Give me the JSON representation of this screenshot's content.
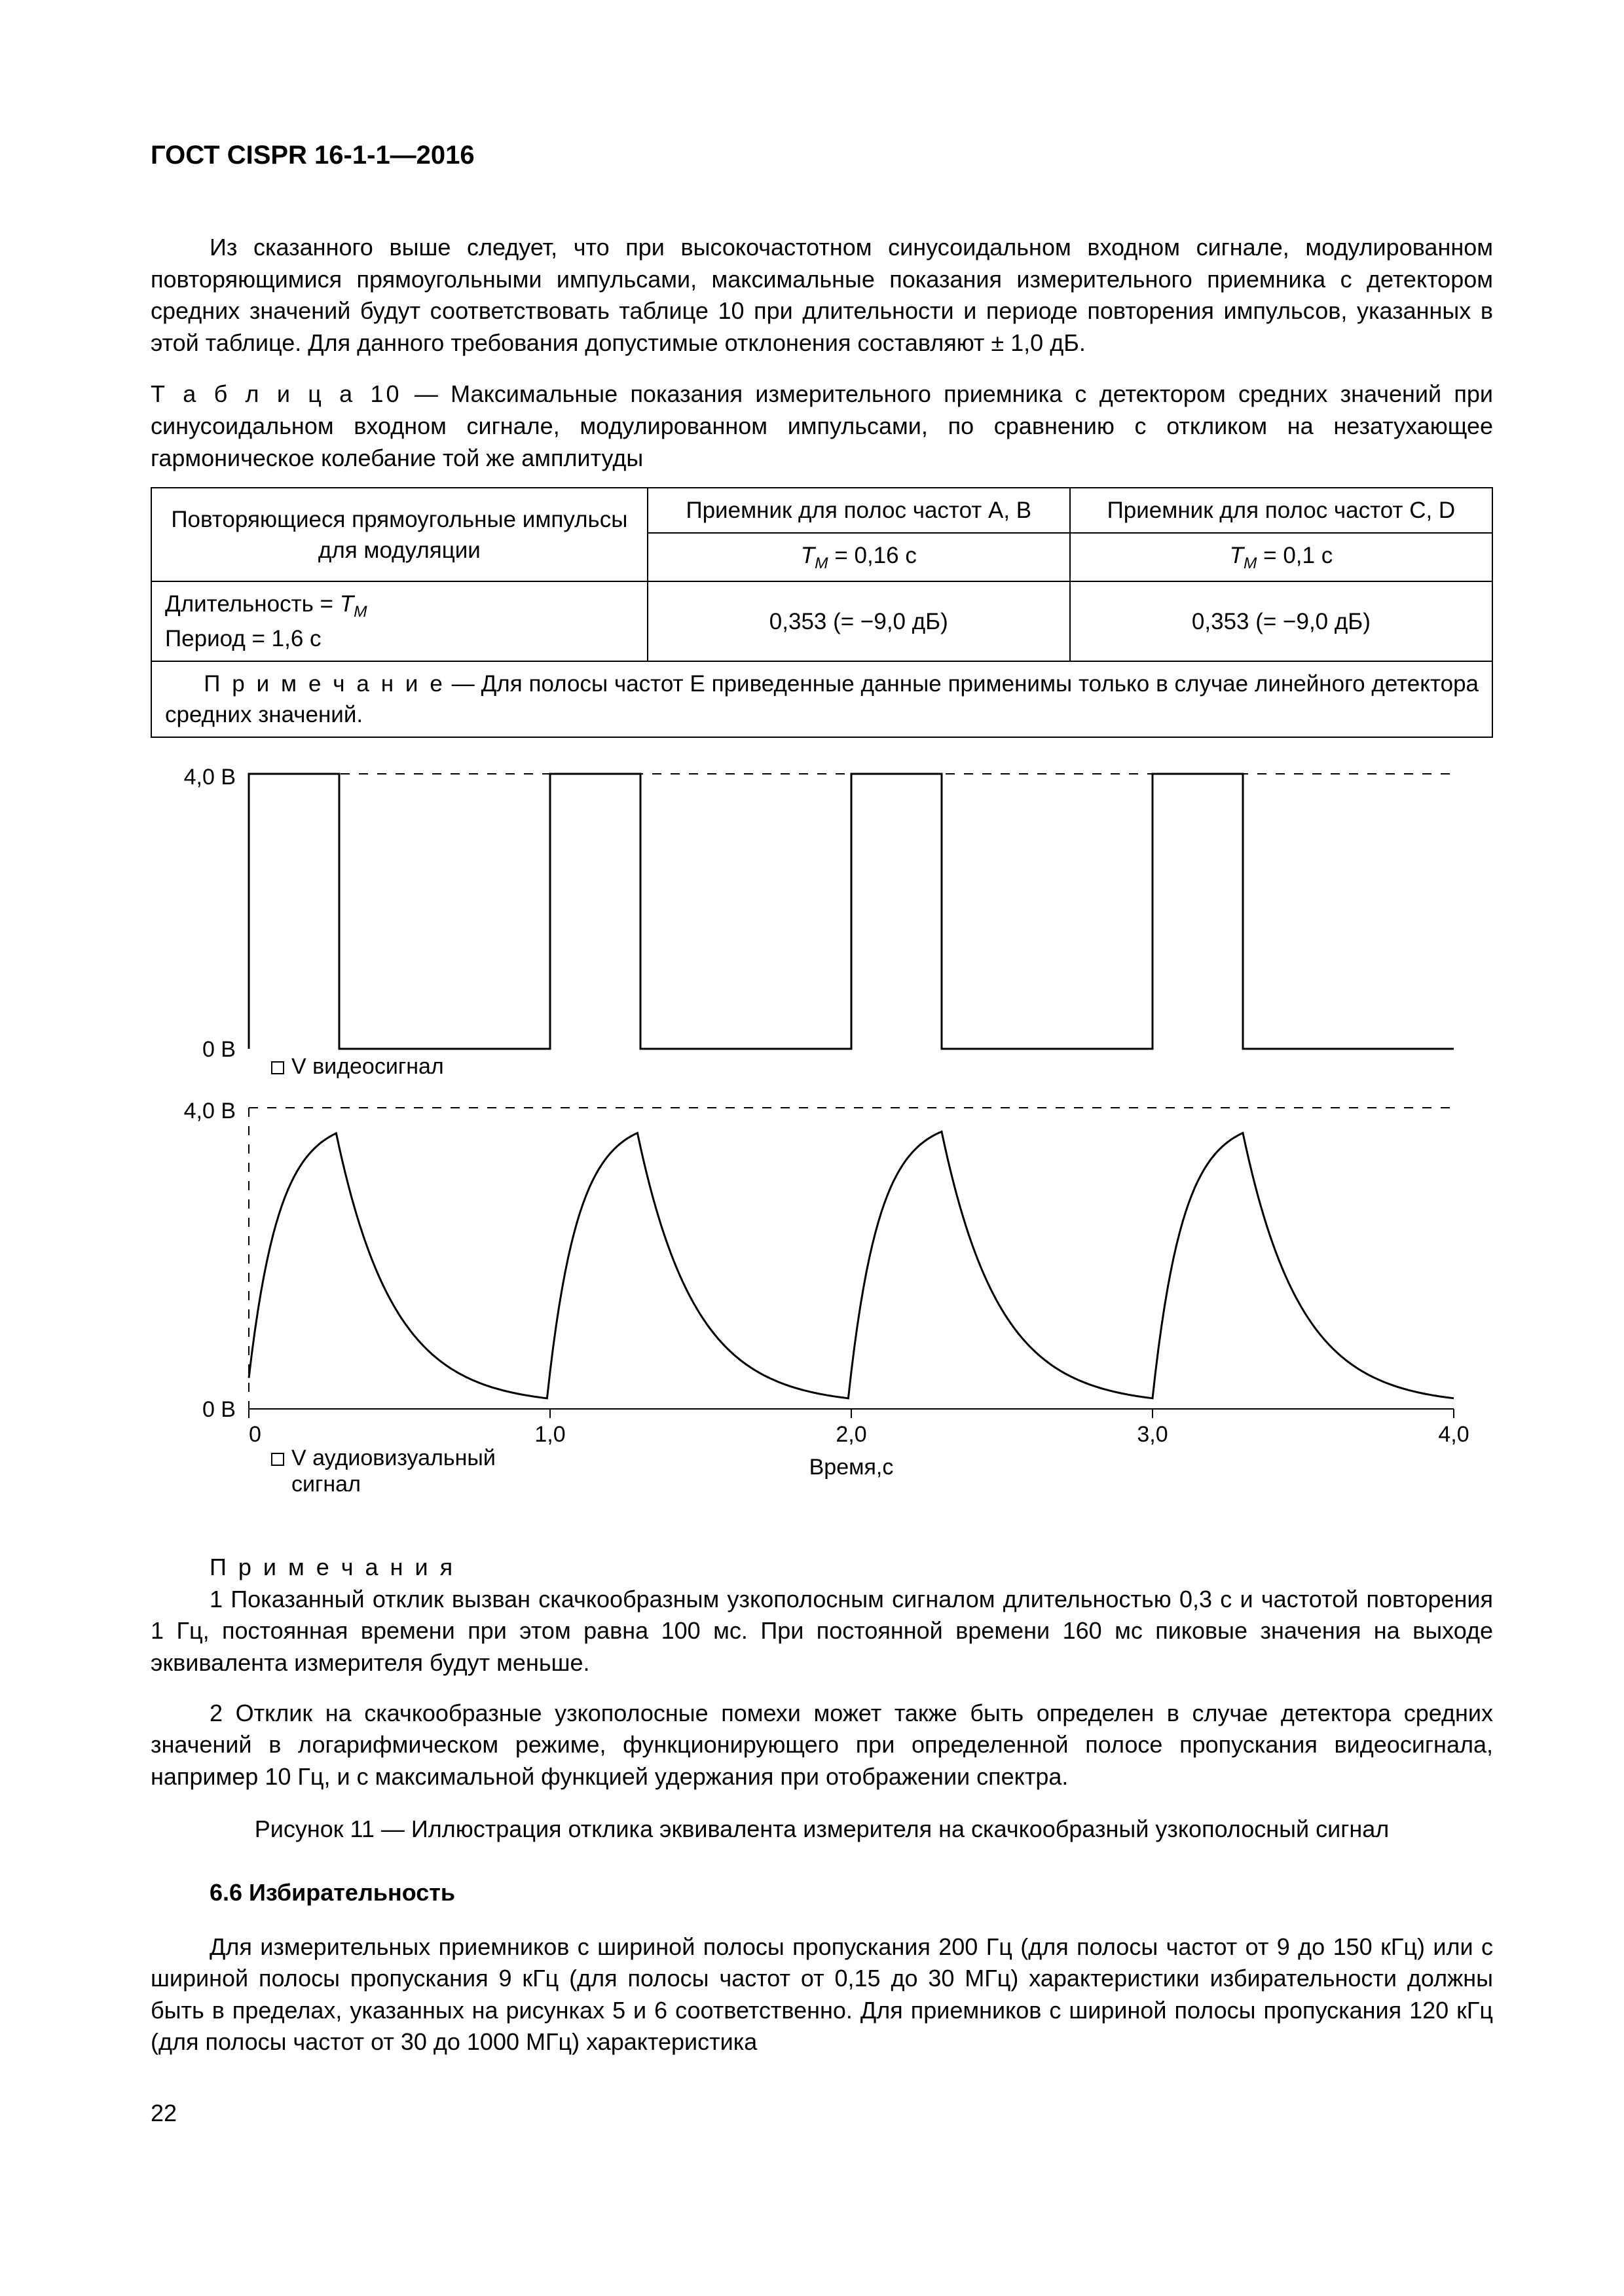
{
  "doc": {
    "header": "ГОСТ CISPR 16-1-1—2016",
    "page_number": "22"
  },
  "para1": "Из сказанного выше следует, что при высокочастотном синусоидальном входном сигнале, модулированном повторяющимися прямоугольными импульсами, максимальные показания измерительного приемника с детектором средних значений будут соответствовать таблице 10 при длительности и периоде повторения импульсов, указанных в этой таблице. Для данного требования допустимые отклонения составляют ± 1,0 дБ.",
  "table10": {
    "caption_prefix": "Т а б л и ц а   10",
    "caption_rest": " — Максимальные показания измерительного приемника с детектором средних значений при синусоидальном входном сигнале, модулированном импульсами, по сравнению с откликом на незатухающее гармоническое колебание той же амплитуды",
    "col1_header": "Повторяющиеся прямоугольные импульсы для модуляции",
    "col2_header": "Приемник для полос частот A, B",
    "col3_header": "Приемник для полос частот C, D",
    "sub2": "T",
    "sub2_sub": "M",
    "sub2_rest": " = 0,16 с",
    "sub3": "T",
    "sub3_sub": "M",
    "sub3_rest": " = 0,1 с",
    "r1c1_a": "Длительность = ",
    "r1c1_b": "T",
    "r1c1_bsub": "M",
    "r1c1_c": "Период = 1,6 с",
    "r1c2": "0,353 (= −9,0 дБ)",
    "r1c3": "0,353 (= −9,0 дБ)",
    "note_prefix": "П р и м е ч а н и е",
    "note_rest": "   —   Для полосы частот E приведенные данные применимы только в случае линейного детектора средних значений."
  },
  "figure11": {
    "chart1": {
      "type": "line",
      "xlim": [
        0,
        4.0
      ],
      "ylim": [
        0,
        4.0
      ],
      "ylabels": [
        "0 В",
        "4,0 В"
      ],
      "pulse_period": 1.0,
      "pulse_duty": 0.3,
      "line_color": "#000000",
      "line_width": 3,
      "dash_color": "#000000",
      "legend_marker": "◻",
      "legend": "V видеосигнал"
    },
    "chart2": {
      "type": "line",
      "xlim": [
        0,
        4.0
      ],
      "ylim": [
        0,
        4.0
      ],
      "ylabels": [
        "0 В",
        "4,0 В"
      ],
      "xlabel": "Время,с",
      "xticks": [
        "0",
        "1,0",
        "2,0",
        "3,0",
        "4,0"
      ],
      "peak_positions": [
        0.75,
        1.75,
        2.75,
        3.75
      ],
      "rise_time_const": 0.1,
      "line_color": "#000000",
      "line_width": 3,
      "legend_marker": "◻",
      "legend_l1": "V аудиовизуальный",
      "legend_l2": "сигнал"
    },
    "notes_label": "П р и м е ч а н и я",
    "note1": "1 Показанный отклик вызван скачкообразным узкополосным сигналом длительностью 0,3 с и частотой повторения 1 Гц, постоянная времени при этом равна 100 мс. При постоянной времени 160 мс пиковые значения на выходе эквивалента измерителя будут меньше.",
    "note2": "2 Отклик на скачкообразные узкополосные помехи может также быть определен в случае детектора средних значений в логарифмическом режиме, функционирующего при определенной полосе пропускания видеосигнала, например 10 Гц, и с максимальной функцией удержания при отображении спектра.",
    "caption": "Рисунок 11 — Иллюстрация отклика эквивалента измерителя на скачкообразный узкополосный сигнал"
  },
  "section66": {
    "heading": "6.6 Избирательность",
    "para": "Для измерительных приемников с шириной полосы пропускания 200 Гц (для полосы частот от 9 до 150 кГц) или с шириной полосы пропускания 9 кГц (для полосы частот от 0,15 до 30 МГц) характеристики избирательности должны быть в пределах, указанных на рисунках 5 и 6 соответственно. Для приемников с шириной полосы пропускания 120 кГц (для полосы частот от 30 до 1000 МГц) характеристика"
  },
  "style": {
    "text_color": "#000000",
    "bg_color": "#ffffff",
    "font_body_pt": 36,
    "font_header_pt": 40
  }
}
